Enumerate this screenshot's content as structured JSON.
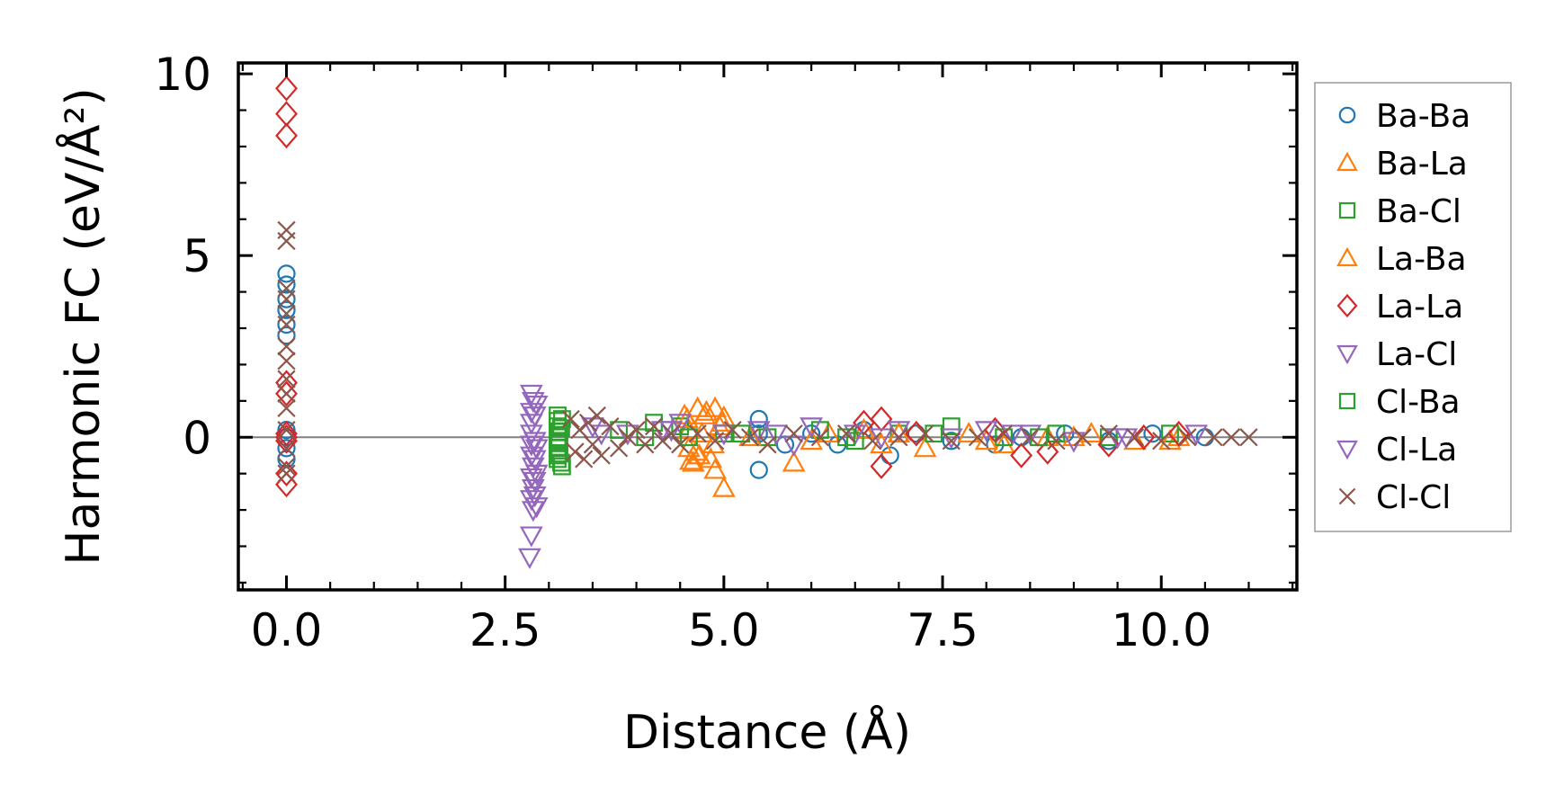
{
  "chart_data": {
    "type": "scatter",
    "title": "",
    "xlabel": "Distance (Å)",
    "ylabel": "Harmonic FC (eV/Å²)",
    "xlim": [
      -0.55,
      11.55
    ],
    "ylim": [
      -4.2,
      10.3
    ],
    "xticks": [
      0.0,
      2.5,
      5.0,
      7.5,
      10.0
    ],
    "xtick_labels": [
      "0.0",
      "2.5",
      "5.0",
      "7.5",
      "10.0"
    ],
    "yticks": [
      0,
      5,
      10
    ],
    "ytick_labels": [
      "0",
      "5",
      "10"
    ],
    "zero_line": true,
    "legend_position": "right-outside",
    "series": [
      {
        "name": "Ba-Ba",
        "marker": "circle",
        "color": "#1f77b4",
        "points": [
          [
            0.0,
            4.5
          ],
          [
            0.0,
            4.2
          ],
          [
            0.0,
            3.8
          ],
          [
            0.0,
            3.5
          ],
          [
            0.0,
            3.1
          ],
          [
            0.0,
            2.8
          ],
          [
            0.0,
            0.2
          ],
          [
            0.0,
            0.0
          ],
          [
            0.0,
            -0.3
          ],
          [
            0.0,
            -0.6
          ],
          [
            5.4,
            0.5
          ],
          [
            5.4,
            -0.9
          ],
          [
            5.4,
            0.1
          ],
          [
            5.7,
            -0.2
          ],
          [
            6.0,
            0.1
          ],
          [
            6.3,
            -0.2
          ],
          [
            6.6,
            0.2
          ],
          [
            6.9,
            -0.5
          ],
          [
            7.2,
            0.1
          ],
          [
            7.6,
            -0.1
          ],
          [
            8.1,
            -0.2
          ],
          [
            8.4,
            0.0
          ],
          [
            8.9,
            0.1
          ],
          [
            9.4,
            -0.1
          ],
          [
            9.9,
            0.1
          ],
          [
            10.5,
            0.0
          ]
        ]
      },
      {
        "name": "Ba-La",
        "marker": "triangle-up",
        "color": "#ff7f0e",
        "points": [
          [
            4.55,
            0.6
          ],
          [
            4.6,
            0.2
          ],
          [
            4.6,
            -0.3
          ],
          [
            4.62,
            -0.65
          ],
          [
            4.65,
            -0.7
          ],
          [
            4.7,
            0.8
          ],
          [
            4.72,
            -0.5
          ],
          [
            4.75,
            0.1
          ],
          [
            4.8,
            0.7
          ],
          [
            4.85,
            -0.6
          ],
          [
            4.9,
            -0.9
          ],
          [
            4.95,
            0.3
          ],
          [
            5.0,
            -1.4
          ],
          [
            4.9,
            0.8
          ],
          [
            5.0,
            0.55
          ],
          [
            5.8,
            -0.7
          ],
          [
            6.2,
            0.1
          ],
          [
            6.6,
            0.2
          ],
          [
            6.8,
            -0.2
          ],
          [
            7.3,
            -0.3
          ],
          [
            7.8,
            0.1
          ],
          [
            8.2,
            -0.2
          ],
          [
            8.7,
            0.0
          ],
          [
            9.2,
            0.1
          ],
          [
            9.7,
            -0.1
          ],
          [
            10.2,
            0.0
          ]
        ]
      },
      {
        "name": "Ba-Cl",
        "marker": "square",
        "color": "#2ca02c",
        "points": [
          [
            3.1,
            0.6
          ],
          [
            3.1,
            0.3
          ],
          [
            3.1,
            0.0
          ],
          [
            3.1,
            -0.3
          ],
          [
            3.1,
            -0.6
          ],
          [
            3.15,
            -0.8
          ],
          [
            3.15,
            0.5
          ],
          [
            3.12,
            0.15
          ],
          [
            3.12,
            -0.15
          ],
          [
            3.12,
            -0.45
          ],
          [
            3.8,
            0.2
          ],
          [
            4.1,
            0.0
          ],
          [
            4.2,
            0.4
          ],
          [
            4.5,
            0.3
          ],
          [
            5.0,
            0.1
          ],
          [
            5.5,
            0.0
          ],
          [
            6.1,
            0.2
          ],
          [
            6.5,
            -0.1
          ],
          [
            7.0,
            0.1
          ],
          [
            7.6,
            0.3
          ],
          [
            8.2,
            0.0
          ],
          [
            8.8,
            0.1
          ],
          [
            9.4,
            0.0
          ],
          [
            10.1,
            0.1
          ]
        ]
      },
      {
        "name": "La-Ba",
        "marker": "triangle-up",
        "color": "#ff7f0e",
        "points": [
          [
            4.58,
            0.5
          ],
          [
            4.68,
            -0.4
          ],
          [
            4.78,
            0.6
          ],
          [
            4.88,
            -0.2
          ],
          [
            4.98,
            0.4
          ],
          [
            5.3,
            0.0
          ],
          [
            6.0,
            -0.1
          ],
          [
            7.0,
            0.1
          ],
          [
            8.0,
            -0.1
          ],
          [
            9.0,
            0.0
          ],
          [
            10.1,
            -0.1
          ]
        ]
      },
      {
        "name": "La-La",
        "marker": "diamond",
        "color": "#d62728",
        "points": [
          [
            0.0,
            9.6
          ],
          [
            0.0,
            8.9
          ],
          [
            0.0,
            8.3
          ],
          [
            0.0,
            1.5
          ],
          [
            0.0,
            1.2
          ],
          [
            0.0,
            0.1
          ],
          [
            0.0,
            0.0
          ],
          [
            0.0,
            -0.1
          ],
          [
            0.0,
            -1.0
          ],
          [
            0.0,
            -1.3
          ],
          [
            6.6,
            0.4
          ],
          [
            6.8,
            -0.8
          ],
          [
            6.8,
            0.5
          ],
          [
            7.2,
            0.1
          ],
          [
            8.1,
            0.2
          ],
          [
            8.4,
            -0.5
          ],
          [
            8.7,
            -0.4
          ],
          [
            9.4,
            -0.2
          ],
          [
            9.8,
            0.0
          ],
          [
            10.2,
            0.1
          ]
        ]
      },
      {
        "name": "La-Cl",
        "marker": "triangle-down",
        "color": "#9467bd",
        "points": [
          [
            2.8,
            1.2
          ],
          [
            2.82,
            1.0
          ],
          [
            2.8,
            0.7
          ],
          [
            2.8,
            0.4
          ],
          [
            2.8,
            0.1
          ],
          [
            2.8,
            -0.2
          ],
          [
            2.8,
            -0.5
          ],
          [
            2.82,
            -0.8
          ],
          [
            2.8,
            -1.1
          ],
          [
            2.82,
            -1.4
          ],
          [
            2.8,
            -1.7
          ],
          [
            2.82,
            -2.0
          ],
          [
            2.8,
            -2.7
          ],
          [
            2.78,
            -3.3
          ],
          [
            2.86,
            0.9
          ],
          [
            2.86,
            -0.3
          ],
          [
            2.86,
            -1.0
          ],
          [
            2.86,
            -1.9
          ],
          [
            3.5,
            0.3
          ],
          [
            3.9,
            0.1
          ],
          [
            4.3,
            0.2
          ],
          [
            4.5,
            0.4
          ],
          [
            5.0,
            0.1
          ],
          [
            5.4,
            0.2
          ],
          [
            5.8,
            -0.2
          ],
          [
            6.0,
            0.3
          ],
          [
            6.5,
            0.1
          ],
          [
            7.0,
            0.2
          ],
          [
            7.6,
            0.0
          ],
          [
            8.0,
            0.2
          ],
          [
            8.5,
            0.1
          ],
          [
            9.0,
            -0.1
          ],
          [
            9.5,
            0.0
          ],
          [
            10.4,
            0.1
          ]
        ]
      },
      {
        "name": "Cl-Ba",
        "marker": "square",
        "color": "#2ca02c",
        "points": [
          [
            3.1,
            0.45
          ],
          [
            3.1,
            -0.1
          ],
          [
            3.1,
            -0.5
          ],
          [
            3.14,
            0.25
          ],
          [
            3.14,
            -0.7
          ],
          [
            4.6,
            0.0
          ],
          [
            5.2,
            0.1
          ],
          [
            6.4,
            0.0
          ],
          [
            7.4,
            0.1
          ],
          [
            8.6,
            0.0
          ]
        ]
      },
      {
        "name": "Cl-La",
        "marker": "triangle-down",
        "color": "#9467bd",
        "points": [
          [
            2.84,
            0.6
          ],
          [
            2.84,
            -0.1
          ],
          [
            2.84,
            -0.6
          ],
          [
            2.84,
            -1.2
          ],
          [
            2.84,
            -1.6
          ],
          [
            3.6,
            0.1
          ],
          [
            4.4,
            0.2
          ],
          [
            5.6,
            0.1
          ],
          [
            6.8,
            0.0
          ],
          [
            8.3,
            0.1
          ],
          [
            9.6,
            0.0
          ]
        ]
      },
      {
        "name": "Cl-Cl",
        "marker": "x",
        "color": "#8c564b",
        "points": [
          [
            0.0,
            5.7
          ],
          [
            0.0,
            5.4
          ],
          [
            0.0,
            4.1
          ],
          [
            0.0,
            3.8
          ],
          [
            0.0,
            3.4
          ],
          [
            0.0,
            3.1
          ],
          [
            0.0,
            2.5
          ],
          [
            0.0,
            2.1
          ],
          [
            0.0,
            1.6
          ],
          [
            0.0,
            1.2
          ],
          [
            0.0,
            0.8
          ],
          [
            0.0,
            0.2
          ],
          [
            0.0,
            -0.3
          ],
          [
            0.0,
            -0.8
          ],
          [
            0.0,
            -1.0
          ],
          [
            3.25,
            0.5
          ],
          [
            3.3,
            -0.4
          ],
          [
            3.35,
            0.2
          ],
          [
            3.4,
            -0.6
          ],
          [
            3.45,
            0.4
          ],
          [
            3.5,
            -0.2
          ],
          [
            3.55,
            0.6
          ],
          [
            3.6,
            -0.5
          ],
          [
            3.7,
            0.3
          ],
          [
            3.8,
            -0.3
          ],
          [
            3.9,
            0.0
          ],
          [
            4.0,
            0.2
          ],
          [
            4.1,
            -0.2
          ],
          [
            4.2,
            0.3
          ],
          [
            4.3,
            -0.1
          ],
          [
            4.4,
            0.1
          ],
          [
            4.5,
            -0.2
          ],
          [
            4.7,
            0.1
          ],
          [
            4.9,
            -0.1
          ],
          [
            5.1,
            0.2
          ],
          [
            5.3,
            0.0
          ],
          [
            5.5,
            -0.2
          ],
          [
            5.8,
            0.1
          ],
          [
            6.1,
            0.0
          ],
          [
            6.4,
            0.1
          ],
          [
            6.7,
            -0.1
          ],
          [
            7.0,
            0.0
          ],
          [
            7.3,
            0.1
          ],
          [
            7.6,
            -0.1
          ],
          [
            7.9,
            0.0
          ],
          [
            8.2,
            0.1
          ],
          [
            8.5,
            0.0
          ],
          [
            8.8,
            -0.1
          ],
          [
            9.1,
            0.0
          ],
          [
            9.4,
            0.1
          ],
          [
            9.7,
            0.0
          ],
          [
            10.0,
            -0.1
          ],
          [
            10.3,
            0.0
          ],
          [
            10.6,
            0.0
          ],
          [
            10.8,
            0.0
          ],
          [
            11.0,
            0.0
          ]
        ]
      }
    ]
  }
}
